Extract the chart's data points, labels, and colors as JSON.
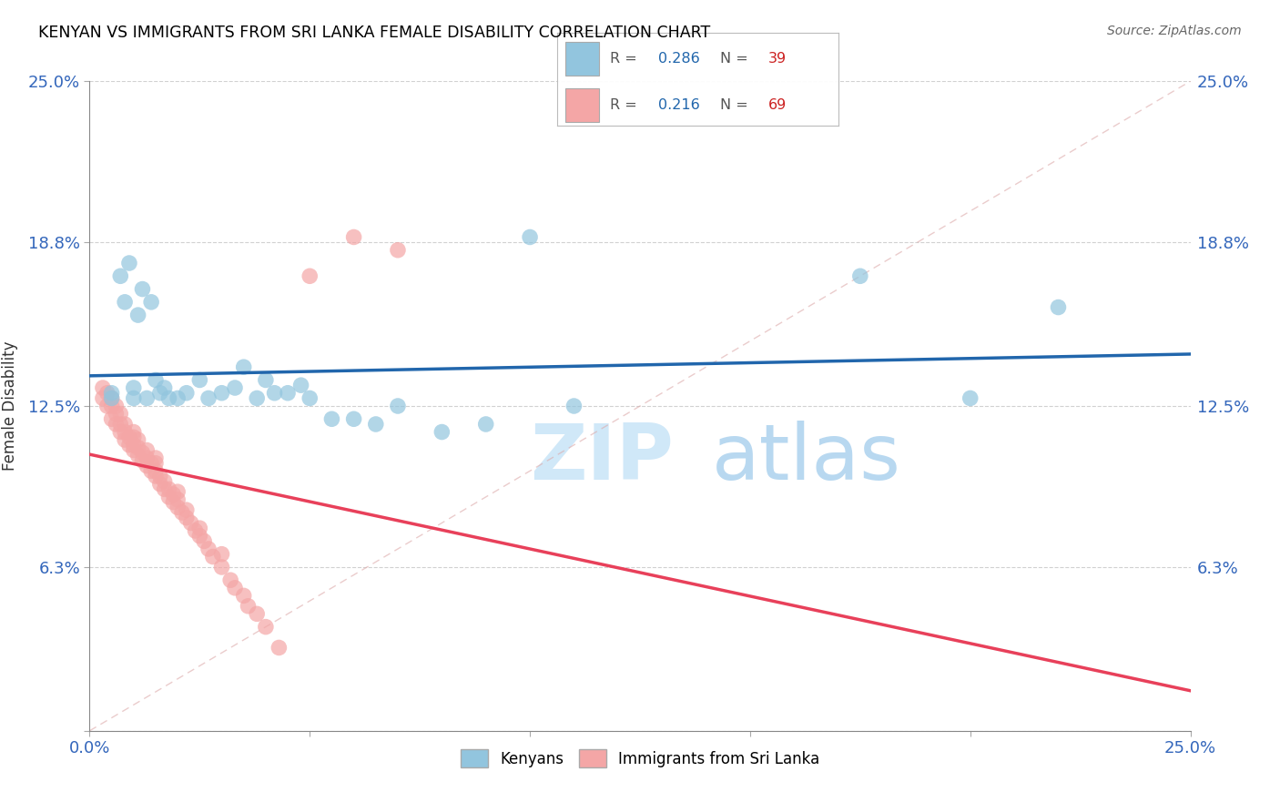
{
  "title": "KENYAN VS IMMIGRANTS FROM SRI LANKA FEMALE DISABILITY CORRELATION CHART",
  "source": "Source: ZipAtlas.com",
  "ylabel": "Female Disability",
  "xlim": [
    0.0,
    0.25
  ],
  "ylim": [
    0.0,
    0.25
  ],
  "blue_color": "#92C5DE",
  "pink_color": "#F4A6A6",
  "blue_line_color": "#2166AC",
  "pink_line_color": "#E8405A",
  "watermark_zip": "ZIP",
  "watermark_atlas": "atlas",
  "legend_items": [
    {
      "color": "#92C5DE",
      "R": "0.286",
      "N": "39"
    },
    {
      "color": "#F4A6A6",
      "R": "0.216",
      "N": "69"
    }
  ],
  "kenyan_x": [
    0.005,
    0.005,
    0.007,
    0.008,
    0.009,
    0.01,
    0.01,
    0.011,
    0.012,
    0.013,
    0.014,
    0.015,
    0.016,
    0.017,
    0.018,
    0.02,
    0.022,
    0.025,
    0.027,
    0.03,
    0.033,
    0.035,
    0.038,
    0.04,
    0.042,
    0.045,
    0.048,
    0.05,
    0.055,
    0.06,
    0.065,
    0.07,
    0.08,
    0.09,
    0.1,
    0.11,
    0.175,
    0.2,
    0.22
  ],
  "kenyan_y": [
    0.13,
    0.128,
    0.175,
    0.165,
    0.18,
    0.128,
    0.132,
    0.16,
    0.17,
    0.128,
    0.165,
    0.135,
    0.13,
    0.132,
    0.128,
    0.128,
    0.13,
    0.135,
    0.128,
    0.13,
    0.132,
    0.14,
    0.128,
    0.135,
    0.13,
    0.13,
    0.133,
    0.128,
    0.12,
    0.12,
    0.118,
    0.125,
    0.115,
    0.118,
    0.19,
    0.125,
    0.175,
    0.128,
    0.163
  ],
  "srilanka_x": [
    0.003,
    0.003,
    0.004,
    0.004,
    0.005,
    0.005,
    0.005,
    0.006,
    0.006,
    0.006,
    0.007,
    0.007,
    0.007,
    0.008,
    0.008,
    0.008,
    0.009,
    0.009,
    0.01,
    0.01,
    0.01,
    0.01,
    0.011,
    0.011,
    0.011,
    0.012,
    0.012,
    0.013,
    0.013,
    0.013,
    0.014,
    0.014,
    0.015,
    0.015,
    0.015,
    0.015,
    0.016,
    0.016,
    0.017,
    0.017,
    0.018,
    0.018,
    0.019,
    0.019,
    0.02,
    0.02,
    0.02,
    0.021,
    0.022,
    0.022,
    0.023,
    0.024,
    0.025,
    0.025,
    0.026,
    0.027,
    0.028,
    0.03,
    0.03,
    0.032,
    0.033,
    0.035,
    0.036,
    0.038,
    0.04,
    0.043,
    0.05,
    0.06,
    0.07
  ],
  "srilanka_y": [
    0.128,
    0.132,
    0.125,
    0.13,
    0.12,
    0.125,
    0.128,
    0.118,
    0.122,
    0.125,
    0.115,
    0.118,
    0.122,
    0.112,
    0.115,
    0.118,
    0.11,
    0.113,
    0.108,
    0.11,
    0.113,
    0.115,
    0.106,
    0.109,
    0.112,
    0.104,
    0.107,
    0.102,
    0.105,
    0.108,
    0.1,
    0.103,
    0.098,
    0.1,
    0.103,
    0.105,
    0.095,
    0.098,
    0.093,
    0.096,
    0.09,
    0.093,
    0.088,
    0.091,
    0.086,
    0.089,
    0.092,
    0.084,
    0.082,
    0.085,
    0.08,
    0.077,
    0.075,
    0.078,
    0.073,
    0.07,
    0.067,
    0.063,
    0.068,
    0.058,
    0.055,
    0.052,
    0.048,
    0.045,
    0.04,
    0.032,
    0.175,
    0.19,
    0.185
  ]
}
